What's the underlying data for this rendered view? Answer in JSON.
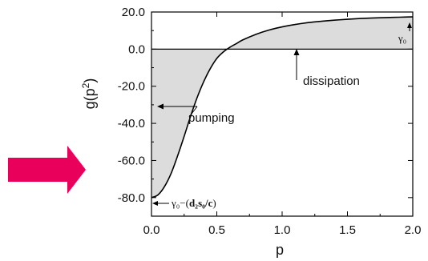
{
  "chart_data": {
    "type": "area",
    "xlabel": "p",
    "ylabel_base": "g(p",
    "ylabel_sup": "2",
    "ylabel_tail": ")",
    "xlim": [
      0.0,
      2.0
    ],
    "ylim": [
      -90.0,
      20.0
    ],
    "x_ticks": [
      0.0,
      0.5,
      1.0,
      1.5,
      2.0
    ],
    "x_tick_labels": [
      "0.0",
      "0.5",
      "1.0",
      "1.5",
      "2.0"
    ],
    "y_ticks": [
      20.0,
      0.0,
      -20.0,
      -40.0,
      -60.0,
      -80.0
    ],
    "y_tick_labels": [
      "20.0",
      "0.0",
      "-20.0",
      "-40.0",
      "-60.0",
      "-80.0"
    ],
    "grid": false,
    "baseline": 0.0,
    "series": [
      {
        "x": [
          0.0,
          0.05,
          0.1,
          0.15,
          0.2,
          0.25,
          0.3,
          0.35,
          0.4,
          0.45,
          0.5,
          0.55,
          0.6,
          0.65,
          0.7,
          0.8,
          0.9,
          1.0,
          1.1,
          1.2,
          1.3,
          1.4,
          1.5,
          1.6,
          1.7,
          1.8,
          1.9,
          2.0
        ],
        "y": [
          -80.0,
          -78.5,
          -74.0,
          -67.0,
          -57.5,
          -47.0,
          -36.0,
          -26.0,
          -17.5,
          -10.5,
          -5.0,
          -1.5,
          1.0,
          3.0,
          5.0,
          8.0,
          10.3,
          12.0,
          13.3,
          14.3,
          15.0,
          15.6,
          16.1,
          16.5,
          16.8,
          17.0,
          17.2,
          17.4
        ]
      }
    ],
    "annotations": {
      "dissipation": "dissipation",
      "pumping": "pumping",
      "gamma0": "γ₀",
      "gamma0_minus_prefix": "γ₀−(",
      "gamma0_minus_bold": "d₂s₀/c",
      "gamma0_minus_suffix": ")"
    },
    "colors": {
      "fill": "#dcdcdc",
      "curve": "#000000",
      "pointer_arrow": "#e8005a"
    }
  }
}
